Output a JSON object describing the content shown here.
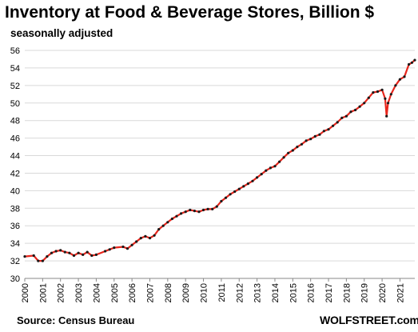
{
  "title": "Inventory at Food & Beverage Stores, Billion $",
  "subtitle": "seasonally adjusted",
  "source": "Source: Census Bureau",
  "brand": "WOLFSTREET.com",
  "colors": {
    "line": "#e8261c",
    "markers": "#1a1a1a",
    "grid": "#d9d9d9",
    "axis": "#888888"
  },
  "chart_data": {
    "type": "line",
    "title": "Inventory at Food & Beverage Stores, Billion $",
    "subtitle": "seasonally adjusted",
    "xlabel": "",
    "ylabel": "",
    "ylim": [
      30,
      56
    ],
    "xlim": [
      2000,
      2021.83
    ],
    "yticks": [
      30,
      32,
      34,
      36,
      38,
      40,
      42,
      44,
      46,
      48,
      50,
      52,
      54,
      56
    ],
    "xticks": [
      "2000",
      "2001",
      "2002",
      "2003",
      "2004",
      "2005",
      "2006",
      "2007",
      "2008",
      "2009",
      "2010",
      "2011",
      "2012",
      "2013",
      "2014",
      "2015",
      "2016",
      "2017",
      "2018",
      "2019",
      "2020",
      "2021"
    ],
    "grid": "horizontal",
    "series": [
      {
        "name": "",
        "x": [
          2000.0,
          2000.5,
          2000.75,
          2001.0,
          2001.25,
          2001.5,
          2001.75,
          2002.0,
          2002.25,
          2002.5,
          2002.75,
          2003.0,
          2003.25,
          2003.5,
          2003.75,
          2004.0,
          2004.5,
          2004.75,
          2005.0,
          2005.5,
          2005.75,
          2006.0,
          2006.25,
          2006.5,
          2006.75,
          2007.0,
          2007.25,
          2007.5,
          2007.75,
          2008.0,
          2008.25,
          2008.5,
          2008.75,
          2009.0,
          2009.25,
          2009.5,
          2009.75,
          2010.0,
          2010.25,
          2010.5,
          2010.75,
          2011.0,
          2011.25,
          2011.5,
          2011.75,
          2012.0,
          2012.25,
          2012.5,
          2012.75,
          2013.0,
          2013.25,
          2013.5,
          2013.75,
          2014.0,
          2014.25,
          2014.5,
          2014.75,
          2015.0,
          2015.25,
          2015.5,
          2015.75,
          2016.0,
          2016.25,
          2016.5,
          2016.75,
          2017.0,
          2017.25,
          2017.5,
          2017.75,
          2018.0,
          2018.25,
          2018.5,
          2018.75,
          2019.0,
          2019.25,
          2019.5,
          2019.75,
          2020.0,
          2020.17,
          2020.25,
          2020.33,
          2020.5,
          2020.75,
          2021.0,
          2021.25,
          2021.5,
          2021.67,
          2021.83
        ],
        "values": [
          32.5,
          32.6,
          32.0,
          32.0,
          32.5,
          32.9,
          33.1,
          33.2,
          33.0,
          32.9,
          32.6,
          32.9,
          32.7,
          33.0,
          32.6,
          32.7,
          33.1,
          33.3,
          33.5,
          33.6,
          33.4,
          33.8,
          34.2,
          34.6,
          34.8,
          34.6,
          34.9,
          35.6,
          36.0,
          36.4,
          36.8,
          37.1,
          37.4,
          37.6,
          37.8,
          37.7,
          37.6,
          37.8,
          37.9,
          37.9,
          38.2,
          38.8,
          39.2,
          39.6,
          39.9,
          40.2,
          40.5,
          40.8,
          41.1,
          41.5,
          41.9,
          42.3,
          42.6,
          42.8,
          43.3,
          43.8,
          44.3,
          44.6,
          45.0,
          45.3,
          45.7,
          45.9,
          46.2,
          46.4,
          46.8,
          47.0,
          47.4,
          47.8,
          48.3,
          48.5,
          49.0,
          49.2,
          49.6,
          50.0,
          50.6,
          51.2,
          51.3,
          51.5,
          50.5,
          48.5,
          50.0,
          51.0,
          52.0,
          52.7,
          53.0,
          54.4,
          54.6,
          54.9
        ]
      }
    ]
  }
}
